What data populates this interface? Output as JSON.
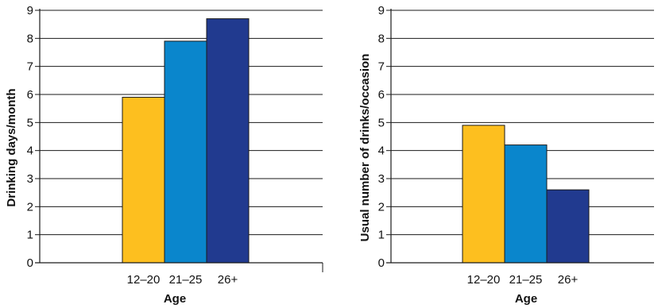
{
  "chart_data": [
    {
      "type": "bar",
      "categories": [
        "12–20",
        "21–25",
        "26+"
      ],
      "values": [
        5.9,
        7.9,
        8.7
      ],
      "colors": [
        "#FDBF1F",
        "#0A86CC",
        "#213A8F"
      ],
      "xlabel": "Age",
      "ylabel": "Drinking days/month",
      "ylim": [
        0,
        9
      ],
      "yticks": [
        "0",
        "1",
        "2",
        "3",
        "4",
        "5",
        "6",
        "7",
        "8",
        "9"
      ],
      "grid": true
    },
    {
      "type": "bar",
      "categories": [
        "12–20",
        "21–25",
        "26+"
      ],
      "values": [
        4.9,
        4.2,
        2.6
      ],
      "colors": [
        "#FDBF1F",
        "#0A86CC",
        "#213A8F"
      ],
      "xlabel": "Age",
      "ylabel": "Usual number of drinks/occasion",
      "ylim": [
        0,
        9
      ],
      "yticks": [
        "0",
        "1",
        "2",
        "3",
        "4",
        "5",
        "6",
        "7",
        "8",
        "9"
      ],
      "grid": true
    }
  ]
}
